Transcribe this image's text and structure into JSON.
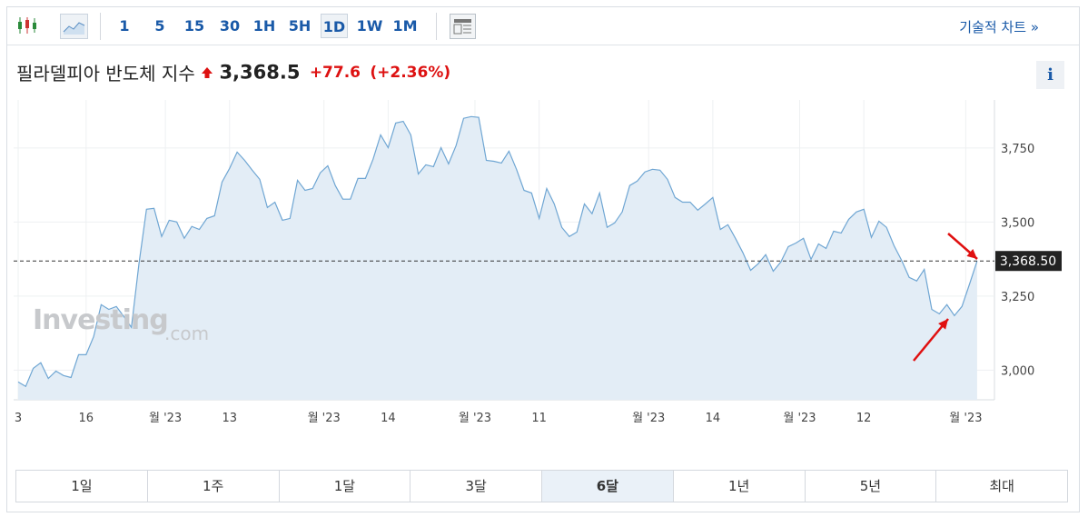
{
  "toolbar": {
    "intervals": [
      "1",
      "5",
      "15",
      "30",
      "1H",
      "5H",
      "1D",
      "1W",
      "1M"
    ],
    "technical_link": "기술적 차트 »"
  },
  "header": {
    "name": "필라델피아 반도체 지수",
    "price": "3,368.5",
    "change": "+77.6",
    "change_pct": "(+2.36%)",
    "info": "i"
  },
  "watermark": {
    "brand": "Investing",
    "suffix": ".com"
  },
  "chart_data": {
    "type": "area",
    "values": [
      2960,
      2945,
      3006,
      3025,
      2972,
      2997,
      2982,
      2975,
      3052,
      3052,
      3113,
      3221,
      3205,
      3215,
      3181,
      3144,
      3359,
      3543,
      3546,
      3451,
      3506,
      3500,
      3445,
      3485,
      3475,
      3512,
      3521,
      3635,
      3681,
      3736,
      3708,
      3675,
      3644,
      3549,
      3567,
      3506,
      3512,
      3641,
      3607,
      3613,
      3666,
      3690,
      3623,
      3577,
      3577,
      3647,
      3647,
      3712,
      3794,
      3751,
      3834,
      3840,
      3794,
      3662,
      3693,
      3687,
      3751,
      3696,
      3758,
      3850,
      3856,
      3853,
      3708,
      3705,
      3699,
      3739,
      3678,
      3607,
      3598,
      3512,
      3613,
      3561,
      3482,
      3451,
      3466,
      3561,
      3528,
      3598,
      3482,
      3497,
      3534,
      3623,
      3638,
      3669,
      3678,
      3675,
      3644,
      3583,
      3567,
      3567,
      3540,
      3561,
      3583,
      3475,
      3491,
      3445,
      3396,
      3337,
      3359,
      3390,
      3334,
      3365,
      3417,
      3429,
      3445,
      3374,
      3426,
      3411,
      3469,
      3463,
      3509,
      3534,
      3543,
      3448,
      3503,
      3482,
      3420,
      3371,
      3313,
      3301,
      3340,
      3205,
      3190,
      3221,
      3184,
      3215,
      3291,
      3368.5
    ],
    "color": "#6fa6d3",
    "fill": "#e3edf6",
    "grid": true,
    "xlim": [
      -0.6,
      129.3
    ],
    "xticks": [
      {
        "value": 0,
        "label": "3"
      },
      {
        "value": 9,
        "label": "16"
      },
      {
        "value": 19.5,
        "label": "월 '23"
      },
      {
        "value": 28,
        "label": "13"
      },
      {
        "value": 40.5,
        "label": "월 '23"
      },
      {
        "value": 49,
        "label": "14"
      },
      {
        "value": 60.5,
        "label": "월 '23"
      },
      {
        "value": 69,
        "label": "11"
      },
      {
        "value": 83.5,
        "label": "월 '23"
      },
      {
        "value": 92,
        "label": "14"
      },
      {
        "value": 103.5,
        "label": "월 '23"
      },
      {
        "value": 112,
        "label": "12"
      },
      {
        "value": 125.5,
        "label": "월 '23"
      }
    ],
    "ylim": [
      2900,
      3912
    ],
    "yticks": [
      {
        "value": 3000,
        "label": "3,000"
      },
      {
        "value": 3250,
        "label": "3,250"
      },
      {
        "value": 3500,
        "label": "3,500"
      },
      {
        "value": 3750,
        "label": "3,750"
      }
    ],
    "last_price": {
      "value": 3368.5,
      "label": "3,368.50"
    }
  },
  "ranges": [
    "1일",
    "1주",
    "1달",
    "3달",
    "6달",
    "1년",
    "5년",
    "최대"
  ]
}
